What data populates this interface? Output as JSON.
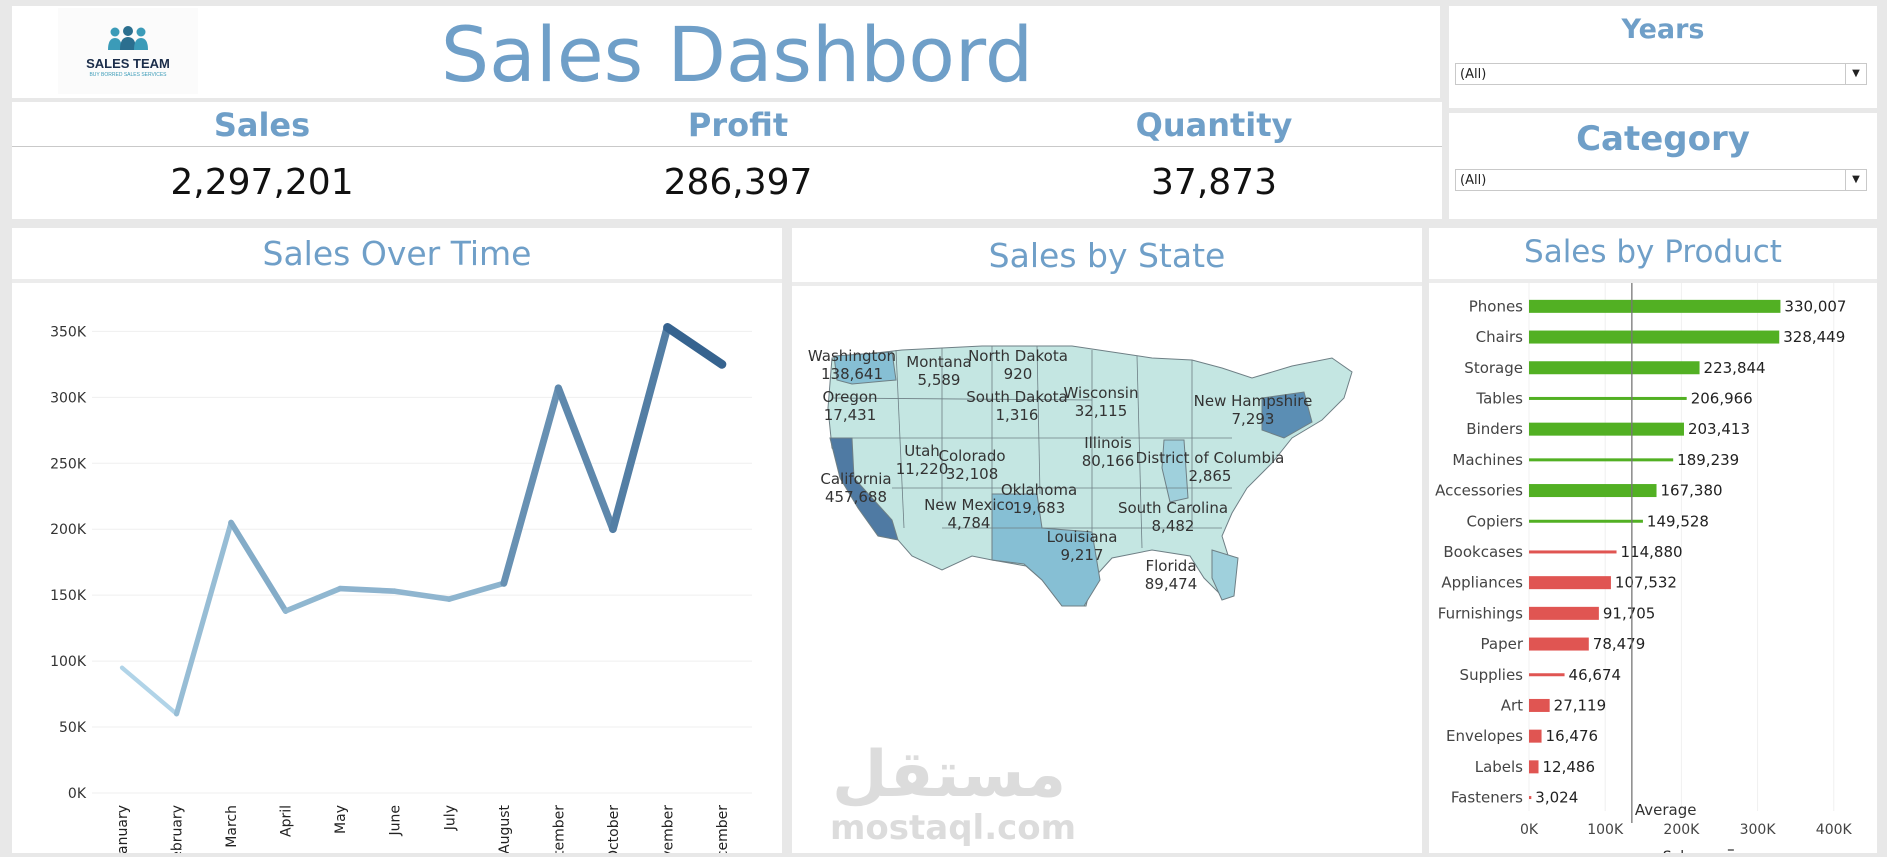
{
  "header": {
    "title": "Sales Dashbord",
    "logo_text": "SALES TEAM",
    "logo_tagline": "BUY BORRED SALES SERVICES"
  },
  "kpis": [
    {
      "label": "Sales",
      "value": "2,297,201"
    },
    {
      "label": "Profit",
      "value": "286,397"
    },
    {
      "label": "Quantity",
      "value": "37,873"
    }
  ],
  "filters": {
    "years": {
      "title": "Years",
      "selected": "(All)"
    },
    "category": {
      "title": "Category",
      "selected": "(All)"
    }
  },
  "watermark": {
    "arabic": "مستقل",
    "latin": "mostaql.com"
  },
  "chart_data": [
    {
      "type": "line",
      "title": "Sales Over Time",
      "categories": [
        "January",
        "February",
        "March",
        "April",
        "May",
        "June",
        "July",
        "August",
        "September",
        "October",
        "November",
        "December"
      ],
      "values": [
        95000,
        60000,
        205000,
        138000,
        155000,
        153000,
        147000,
        159000,
        307000,
        200000,
        353000,
        325000
      ],
      "ylim": [
        0,
        370000
      ],
      "y_ticks": [
        0,
        50000,
        100000,
        150000,
        200000,
        250000,
        300000,
        350000
      ],
      "y_tick_labels": [
        "0K",
        "50K",
        "100K",
        "150K",
        "200K",
        "250K",
        "300K",
        "350K"
      ],
      "grid": true,
      "color_low": "#b9dcee",
      "color_high": "#2f5d8a"
    },
    {
      "type": "map",
      "title": "Sales by State",
      "labels": [
        {
          "state": "Washington",
          "value": "138,641"
        },
        {
          "state": "Montana",
          "value": "5,589"
        },
        {
          "state": "North Dakota",
          "value": "920"
        },
        {
          "state": "Oregon",
          "value": "17,431"
        },
        {
          "state": "South Dakota",
          "value": "1,316"
        },
        {
          "state": "Wisconsin",
          "value": "32,115"
        },
        {
          "state": "New Hampshire",
          "value": "7,293"
        },
        {
          "state": "Illinois",
          "value": "80,166"
        },
        {
          "state": "Utah",
          "value": "11,220"
        },
        {
          "state": "Colorado",
          "value": "32,108"
        },
        {
          "state": "District of Columbia",
          "value": "2,865"
        },
        {
          "state": "California",
          "value": "457,688"
        },
        {
          "state": "Oklahoma",
          "value": "19,683"
        },
        {
          "state": "New Mexico",
          "value": "4,784"
        },
        {
          "state": "South Carolina",
          "value": "8,482"
        },
        {
          "state": "Louisiana",
          "value": "9,217"
        },
        {
          "state": "Florida",
          "value": "89,474"
        }
      ]
    },
    {
      "type": "bar",
      "orientation": "horizontal",
      "title": "Sales by Product",
      "xlabel": "Sales",
      "categories": [
        "Phones",
        "Chairs",
        "Storage",
        "Tables",
        "Binders",
        "Machines",
        "Accessories",
        "Copiers",
        "Bookcases",
        "Appliances",
        "Furnishings",
        "Paper",
        "Supplies",
        "Art",
        "Envelopes",
        "Labels",
        "Fasteners"
      ],
      "values": [
        330007,
        328449,
        223844,
        206966,
        203413,
        189239,
        167380,
        149528,
        114880,
        107532,
        91705,
        78479,
        46674,
        27119,
        16476,
        12486,
        3024
      ],
      "value_labels": [
        "330,007",
        "328,449",
        "223,844",
        "206,966",
        "203,413",
        "189,239",
        "167,380",
        "149,528",
        "114,880",
        "107,532",
        "91,705",
        "78,479",
        "46,674",
        "27,119",
        "16,476",
        "12,486",
        "3,024"
      ],
      "thick": [
        true,
        true,
        true,
        false,
        true,
        false,
        true,
        false,
        false,
        true,
        true,
        true,
        false,
        true,
        true,
        true,
        false
      ],
      "xlim": [
        0,
        420000
      ],
      "x_ticks": [
        0,
        100000,
        200000,
        300000,
        400000
      ],
      "x_tick_labels": [
        "0K",
        "100K",
        "200K",
        "300K",
        "400K"
      ],
      "reference_line": {
        "label": "Average",
        "value": 135000
      },
      "color_above": "#52b023",
      "color_below": "#e05552"
    }
  ]
}
